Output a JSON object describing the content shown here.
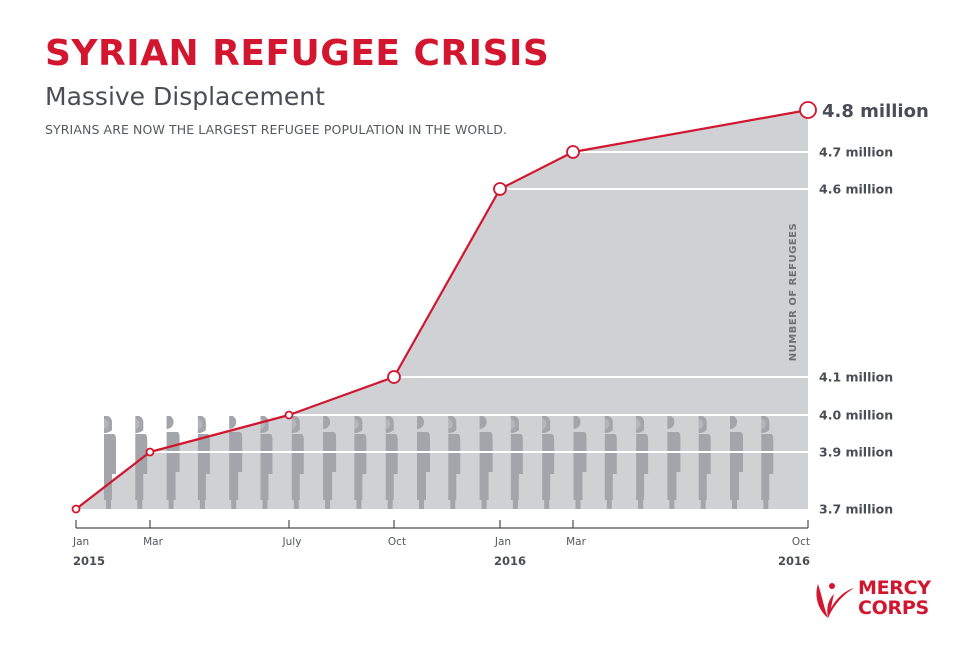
{
  "header": {
    "title": "SYRIAN REFUGEE CRISIS",
    "subtitle": "Massive Displacement",
    "tagline": "SYRIANS ARE NOW THE LARGEST REFUGEE POPULATION IN THE WORLD."
  },
  "colors": {
    "accent": "#D2162F",
    "area_fill": "#D0D1D4",
    "figure": "#A3A5AA",
    "text_dark": "#4A4D55",
    "axis": "#4A4D55"
  },
  "chart_data": {
    "type": "area",
    "title": "SYRIAN REFUGEE CRISIS",
    "subtitle": "Massive Displacement",
    "xlabel": "",
    "ylabel": "NUMBER OF REFUGEES",
    "unit": "million",
    "grid": true,
    "points": [
      {
        "month": "Jan",
        "year": "2015",
        "value": 3.7,
        "label": "3.7 million",
        "marker": "small"
      },
      {
        "month": "Mar",
        "year": "2015",
        "value": 3.9,
        "label": "3.9 million",
        "marker": "small"
      },
      {
        "month": "July",
        "year": "2015",
        "value": 4.0,
        "label": "4.0 million",
        "marker": "small"
      },
      {
        "month": "Oct",
        "year": "2015",
        "value": 4.1,
        "label": "4.1 million",
        "marker": "medium"
      },
      {
        "month": "Jan",
        "year": "2016",
        "value": 4.6,
        "label": "4.6 million",
        "marker": "medium"
      },
      {
        "month": "Mar",
        "year": "2016",
        "value": 4.7,
        "label": "4.7 million",
        "marker": "medium"
      },
      {
        "month": "Oct",
        "year": "2016",
        "value": 4.8,
        "label": "4.8 million",
        "marker": "large"
      }
    ],
    "x_ticks": [
      {
        "label": "Jan",
        "year_label": "2015",
        "months_from_start": 0
      },
      {
        "label": "Mar",
        "year_label": "",
        "months_from_start": 2
      },
      {
        "label": "July",
        "year_label": "",
        "months_from_start": 6
      },
      {
        "label": "Oct",
        "year_label": "",
        "months_from_start": 9
      },
      {
        "label": "Jan",
        "year_label": "2016",
        "months_from_start": 12
      },
      {
        "label": "Mar",
        "year_label": "",
        "months_from_start": 14
      },
      {
        "label": "Oct",
        "year_label": "2016",
        "months_from_start": 21
      }
    ],
    "y_labels": [
      "4.8 million",
      "4.7 million",
      "4.6 million",
      "4.1 million",
      "4.0 million",
      "3.9 million",
      "3.7 million"
    ],
    "legend": "none",
    "figures": [
      "W",
      "W",
      "M",
      "W",
      "M",
      "W",
      "W",
      "M",
      "W",
      "W",
      "M",
      "W",
      "M",
      "W",
      "W",
      "M",
      "W",
      "W",
      "M",
      "W",
      "M",
      "W"
    ]
  },
  "logo": {
    "line1": "MERCY",
    "line2": "CORPS"
  }
}
